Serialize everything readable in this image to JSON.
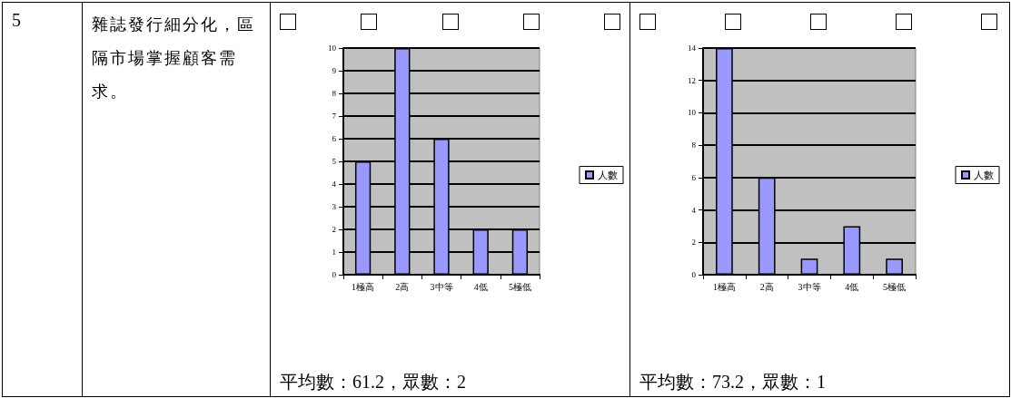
{
  "chart_data": [
    {
      "type": "other",
      "annotations": [
        "5",
        "雜誌發行細分化，區隔市場掌握顧客需求。"
      ]
    },
    {
      "type": "bar",
      "categories": [
        "1極高",
        "2高",
        "3中等",
        "4低",
        "5極低"
      ],
      "series": [
        {
          "name": "人數",
          "color": "#9999ff",
          "values": [
            5,
            10,
            6,
            2,
            2
          ]
        }
      ],
      "ylim": [
        0,
        10
      ],
      "yticks": [
        0,
        1,
        2,
        3,
        4,
        5,
        6,
        7,
        8,
        9,
        10
      ],
      "grid": "y",
      "legend": "right",
      "annotations": [
        "平均數：61.2，眾數：2"
      ]
    },
    {
      "type": "bar",
      "categories": [
        "1極高",
        "2高",
        "3中等",
        "4低",
        "5極低"
      ],
      "series": [
        {
          "name": "人數",
          "color": "#9999ff",
          "values": [
            14,
            6,
            1,
            3,
            1
          ]
        }
      ],
      "ylim": [
        0,
        14
      ],
      "yticks": [
        0,
        2,
        4,
        6,
        8,
        10,
        12,
        14
      ],
      "grid": "y",
      "legend": "right",
      "annotations": [
        "平均數：73.2，眾數：1"
      ]
    }
  ]
}
